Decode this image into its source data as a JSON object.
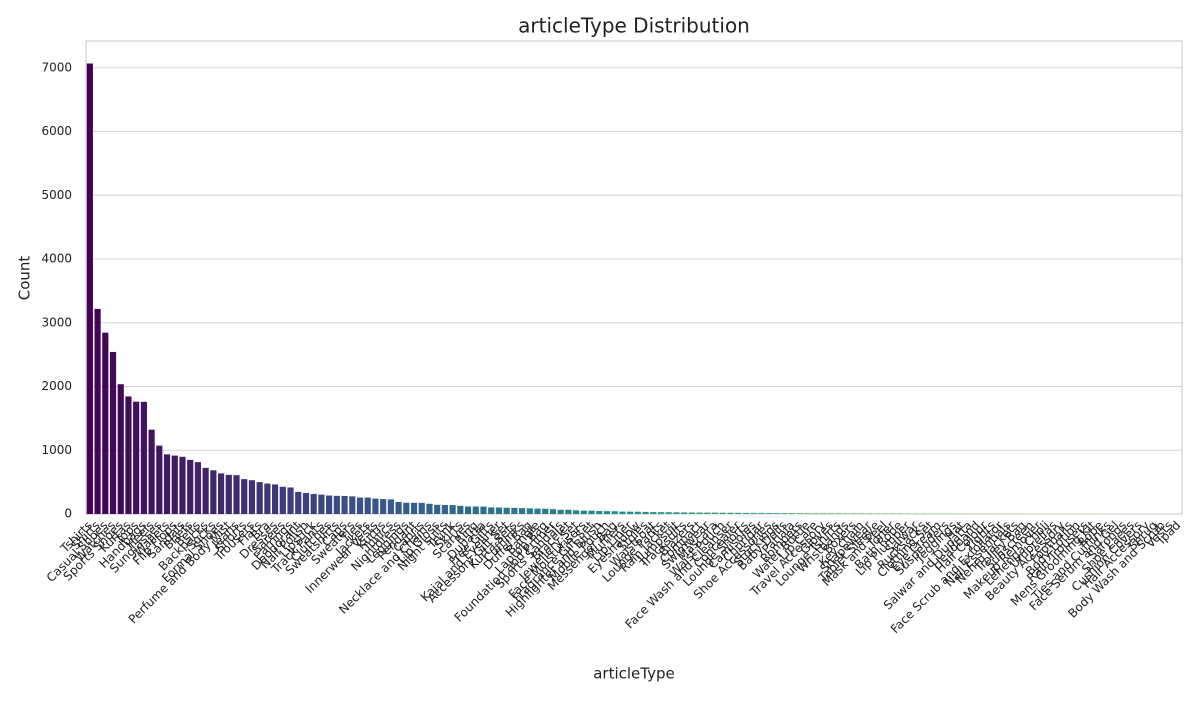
{
  "chart_data": {
    "type": "bar",
    "title": "articleType Distribution",
    "xlabel": "articleType",
    "ylabel": "Count",
    "categories": [
      "Tshirts",
      "Shirts",
      "Casual Shoes",
      "Watches",
      "Sports Shoes",
      "Kurtas",
      "Tops",
      "Handbags",
      "Heels",
      "Sunglasses",
      "Wallets",
      "Flip Flops",
      "Sandals",
      "Briefs",
      "Belts",
      "Backpacks",
      "Socks",
      "Formal Shoes",
      "Perfume and Body Mist",
      "Jeans",
      "Shorts",
      "Trousers",
      "Flats",
      "Bra",
      "Dresses",
      "Sarees",
      "Earrings",
      "Deodorant",
      "Nail Polish",
      "Lipstick",
      "Track Pants",
      "Clutches",
      "Sweatshirts",
      "Caps",
      "Sweaters",
      "Ties",
      "Jackets",
      "Innerwear Vests",
      "Kurtis",
      "Tunics",
      "Nightdress",
      "Leggings",
      "Pendant",
      "Capris",
      "Necklace and Chains",
      "Lip Gloss",
      "Night suits",
      "Trunk",
      "Skirts",
      "Scarves",
      "Ring",
      "Dupatta",
      "Free Gifts",
      "Kajal and Eyeliner",
      "Accessory Gift Set",
      "Kurta Sets",
      "Cufflinks",
      "Duffel Bag",
      "Bangle",
      "Laptop Bag",
      "Foundation and Primer",
      "Sports Sandals",
      "Bracelet",
      "Jewellery Set",
      "Face Moisturisers",
      "Fragrance Gift Set",
      "Highlighter and Blush",
      "Mobile Pouch",
      "Messenger Bag",
      "Mufflers",
      "Lip Liner",
      "Eyeshadow",
      "Stoles",
      "Waistcoat",
      "Lounge Pants",
      "Rain Jacket",
      "Jumpsuit",
      "Tracksuits",
      "Blazers",
      "Compact",
      "Swimwear",
      "Mascara",
      "Waist Pouch",
      "Face Wash and Cleanser",
      "Concealer",
      "Lounge Shorts",
      "Camisoles",
      "Churidar",
      "Shoe Accessories",
      "Stockings",
      "Baby Dolls",
      "Patiala",
      "Rompers",
      "Water Bottle",
      "Lip Care",
      "Travel Accessory",
      "Gloves",
      "Lounge Tshirts",
      "Wristbands",
      "Boxers",
      "Key chain",
      "Shapewear",
      "Tablet Sleeve",
      "Mask and Peel",
      "Toner",
      "Bath Robe",
      "Lip Plumper",
      "Salwar",
      "Rucksacks",
      "Clothing Set",
      "Eye Cream",
      "Suspenders",
      "Jeggings",
      "Hat",
      "Salwar and Dupatta",
      "Headband",
      "Hair Colour",
      "Tights",
      "Face Scrub and Exfoliator",
      "Nail Essentials",
      "Nehru Jackets",
      "Trolley Bag",
      "Sunscreen",
      "Makeup Remover",
      "Lehenga Choli",
      "Umbrellas",
      "Beauty Accessory",
      "Footballs",
      "Body Lotion",
      "Rain Trousers",
      "Mens Grooming Kit",
      "Robe",
      "Ties and Cufflinks",
      "Face Serum and Gel",
      "Sarongs",
      "Shoe Laces",
      "Cushion Covers",
      "Hair Accessory",
      "Shrug",
      "Body Wash and Scrub",
      "Vests",
      "Ipad"
    ],
    "values": [
      7067,
      3217,
      2845,
      2542,
      2036,
      1844,
      1762,
      1759,
      1323,
      1073,
      936,
      916,
      897,
      849,
      813,
      724,
      686,
      637,
      614,
      609,
      547,
      530,
      500,
      477,
      464,
      427,
      416,
      347,
      329,
      315,
      304,
      290,
      285,
      283,
      277,
      258,
      258,
      242,
      234,
      229,
      189,
      177,
      176,
      175,
      160,
      144,
      141,
      140,
      128,
      118,
      118,
      116,
      104,
      102,
      98,
      96,
      92,
      88,
      85,
      82,
      76,
      67,
      66,
      58,
      53,
      52,
      47,
      45,
      44,
      38,
      37,
      36,
      33,
      30,
      29,
      28,
      26,
      25,
      24,
      23,
      22,
      22,
      21,
      20,
      19,
      18,
      18,
      17,
      16,
      15,
      14,
      14,
      13,
      13,
      12,
      12,
      11,
      11,
      10,
      10,
      9,
      9,
      8,
      8,
      8,
      8,
      7,
      7,
      7,
      6,
      6,
      6,
      5,
      5,
      5,
      5,
      5,
      5,
      4,
      4,
      4,
      4,
      3,
      3,
      3,
      3,
      3,
      3,
      3,
      3,
      2,
      2,
      2,
      2,
      2,
      1,
      1,
      1,
      1,
      1,
      1,
      1
    ],
    "palette": [
      "#440154",
      "#3b528b",
      "#21918c",
      "#5ec962",
      "#fde725"
    ],
    "ylim": [
      0,
      7420
    ],
    "yticks": [
      0,
      1000,
      2000,
      3000,
      4000,
      5000,
      6000,
      7000
    ],
    "grid": true
  }
}
